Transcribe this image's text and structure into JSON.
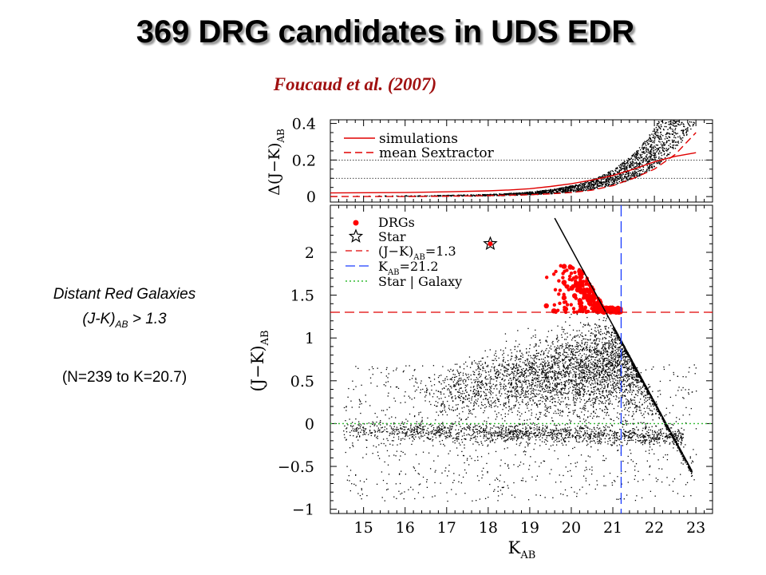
{
  "title": "369 DRG candidates in UDS EDR",
  "subtitle": "Foucaud et al. (2007)",
  "annotation": {
    "line1": "Distant Red Galaxies",
    "line2_main": "(J-K)",
    "line2_sub": "AB",
    "line2_rest": " > 1.3",
    "line3": "(N=239 to K=20.7)"
  },
  "colors": {
    "drg": "#ff0000",
    "simulations": "#e00000",
    "k_limit": "#1a3cff",
    "star_galaxy": "#33bb33",
    "points": "#000000"
  },
  "chart_data": [
    {
      "panel": "top",
      "type": "scatter",
      "ylabel": "Δ(J−K)AB",
      "xlim": [
        14.2,
        23.4
      ],
      "ylim": [
        -0.03,
        0.42
      ],
      "yticks": [
        0,
        0.2,
        0.4
      ],
      "yticklabels": [
        "0",
        "0.2",
        "0.4"
      ],
      "legend_position": "top-left",
      "reference_lines": [
        {
          "y": 0.2,
          "style": "dotted",
          "color": "#000000"
        },
        {
          "y": 0.1,
          "style": "dotted",
          "color": "#000000"
        }
      ],
      "series": [
        {
          "name": "simulations",
          "style": "solid",
          "color": "#e00000",
          "x": [
            14.2,
            16,
            17,
            18,
            18.5,
            19,
            19.5,
            20,
            20.5,
            21,
            21.5,
            22,
            22.5,
            23
          ],
          "y": [
            0.02,
            0.022,
            0.026,
            0.031,
            0.036,
            0.043,
            0.055,
            0.07,
            0.09,
            0.115,
            0.15,
            0.19,
            0.22,
            0.24
          ]
        },
        {
          "name": "mean Sextractor",
          "style": "dashed",
          "color": "#e00000",
          "x": [
            14.2,
            16,
            17,
            18,
            19,
            19.5,
            20,
            20.5,
            21,
            21.5,
            22,
            22.5,
            23
          ],
          "y": [
            0.0,
            0.0,
            0.002,
            0.005,
            0.01,
            0.015,
            0.022,
            0.035,
            0.06,
            0.1,
            0.15,
            0.23,
            0.35
          ]
        }
      ]
    },
    {
      "panel": "bottom",
      "type": "scatter",
      "xlabel": "KAB",
      "ylabel": "(J−K)AB",
      "xlim": [
        14.2,
        23.4
      ],
      "ylim": [
        -1.05,
        2.55
      ],
      "xticks": [
        15,
        16,
        17,
        18,
        19,
        20,
        21,
        22,
        23
      ],
      "xticklabels": [
        "15",
        "16",
        "17",
        "18",
        "19",
        "20",
        "21",
        "22",
        "23"
      ],
      "yticks": [
        -1,
        -0.5,
        0,
        0.5,
        1,
        1.5,
        2
      ],
      "yticklabels": [
        "−1",
        "−0.5",
        "0",
        "0.5",
        "1",
        "1.5",
        "2"
      ],
      "legend_position": "top-left",
      "legend": [
        "DRGs",
        "Star",
        "(J−K)AB=1.3",
        "KAB=21.2",
        "Star | Galaxy"
      ],
      "reference_lines": [
        {
          "name": "(J−K)AB=1.3",
          "axis": "y",
          "value": 1.3,
          "style": "dashed",
          "color": "#e00000"
        },
        {
          "name": "KAB=21.2",
          "axis": "x",
          "value": 21.2,
          "style": "dashed",
          "color": "#1a3cff"
        },
        {
          "name": "Star | Galaxy",
          "axis": "y",
          "value": 0.0,
          "style": "dotted",
          "color": "#33bb33"
        }
      ],
      "star_marker": {
        "x": 18.05,
        "y": 2.1
      },
      "drg_count": 369,
      "selection_limit_line": {
        "x": [
          19.6,
          22.9
        ],
        "y": [
          2.4,
          -0.55
        ]
      }
    }
  ]
}
